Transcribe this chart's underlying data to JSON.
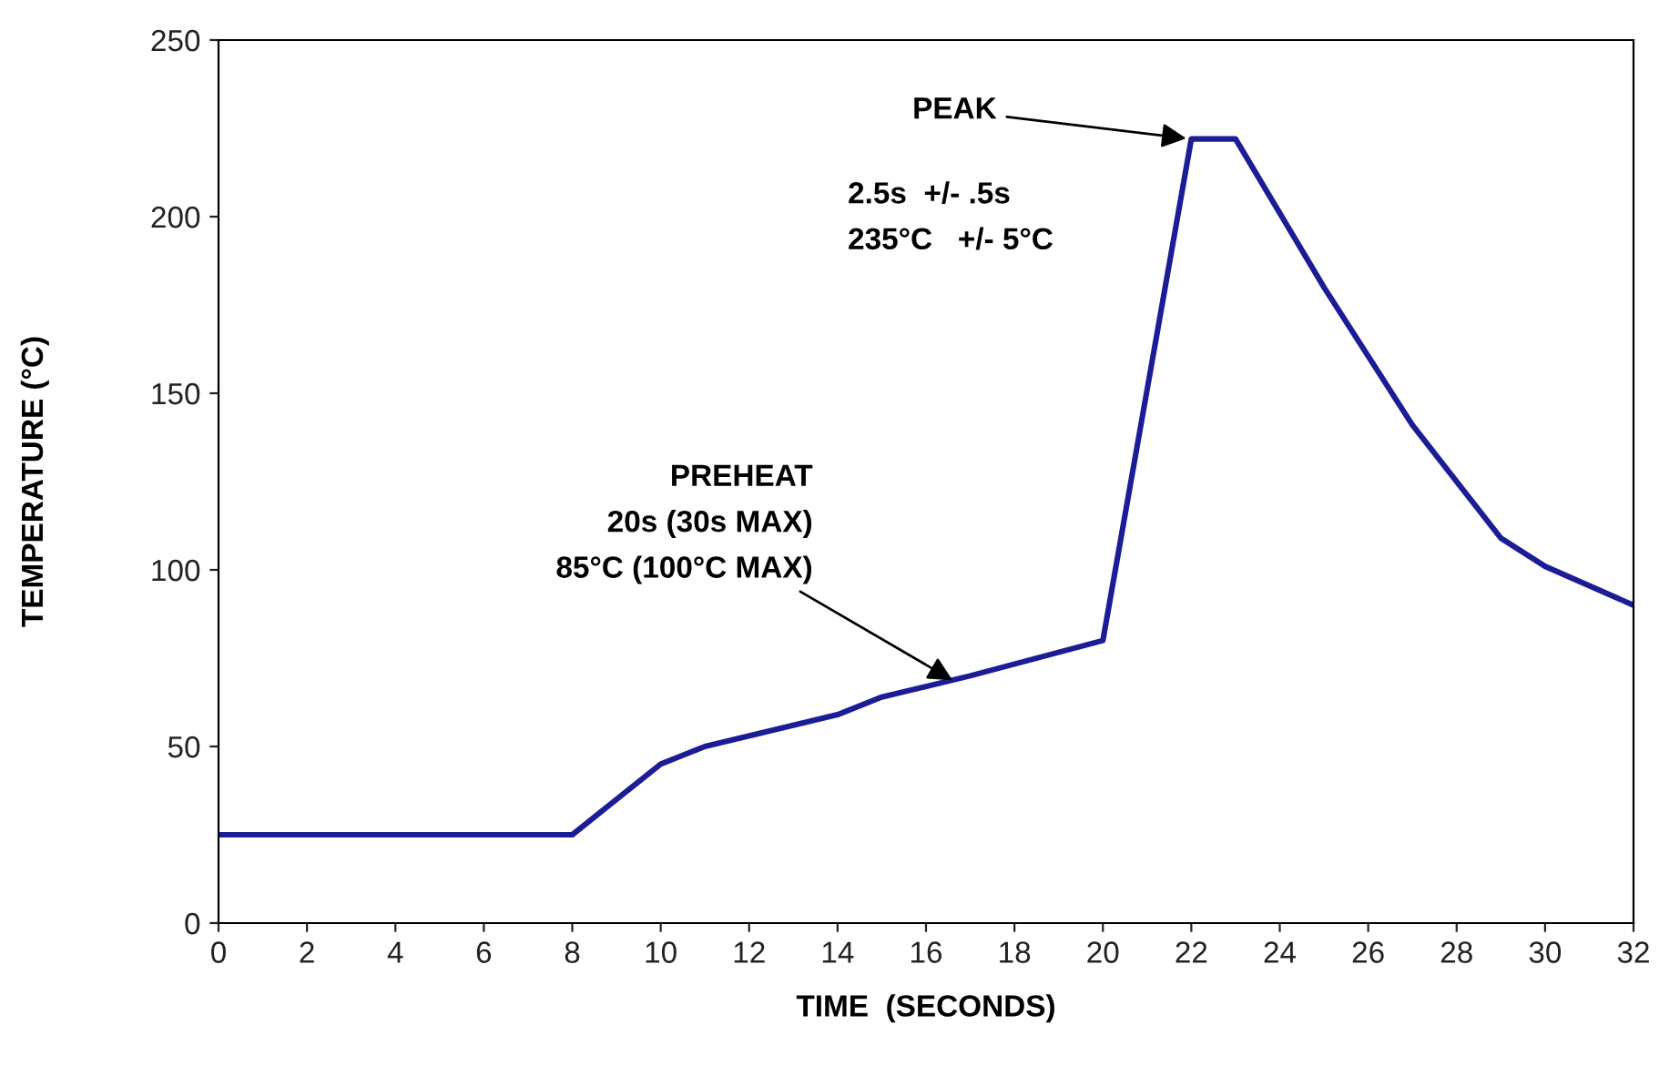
{
  "chart_data": {
    "type": "line",
    "xlabel": "TIME  (SECONDS)",
    "ylabel": "TEMPERATURE (°C)",
    "x": [
      0,
      8,
      9,
      10,
      11,
      14,
      15,
      17,
      20,
      22,
      23,
      25,
      27,
      29,
      30,
      32
    ],
    "values": [
      25,
      25,
      35,
      45,
      50,
      59,
      64,
      70,
      80,
      222,
      222,
      180,
      141,
      109,
      101,
      90
    ],
    "color": "#1c1c96",
    "line_style": "solid",
    "marker": "none",
    "grid": false,
    "legend": false,
    "xlim": [
      0,
      32
    ],
    "xticks": [
      0,
      2,
      4,
      6,
      8,
      10,
      12,
      14,
      16,
      18,
      20,
      22,
      24,
      26,
      28,
      30,
      32
    ],
    "ylim": [
      0,
      250
    ],
    "yticks": [
      0,
      50,
      100,
      150,
      200,
      250
    ],
    "annotations": [
      {
        "text": "PEAK",
        "x": 22,
        "y": 222
      },
      "2.5s  +/- .5s\n235°C   +/- 5°C",
      {
        "text": "PREHEAT\n20s (30s MAX)\n85°C (100°C MAX)",
        "x": 16.7,
        "y": 68
      }
    ]
  }
}
